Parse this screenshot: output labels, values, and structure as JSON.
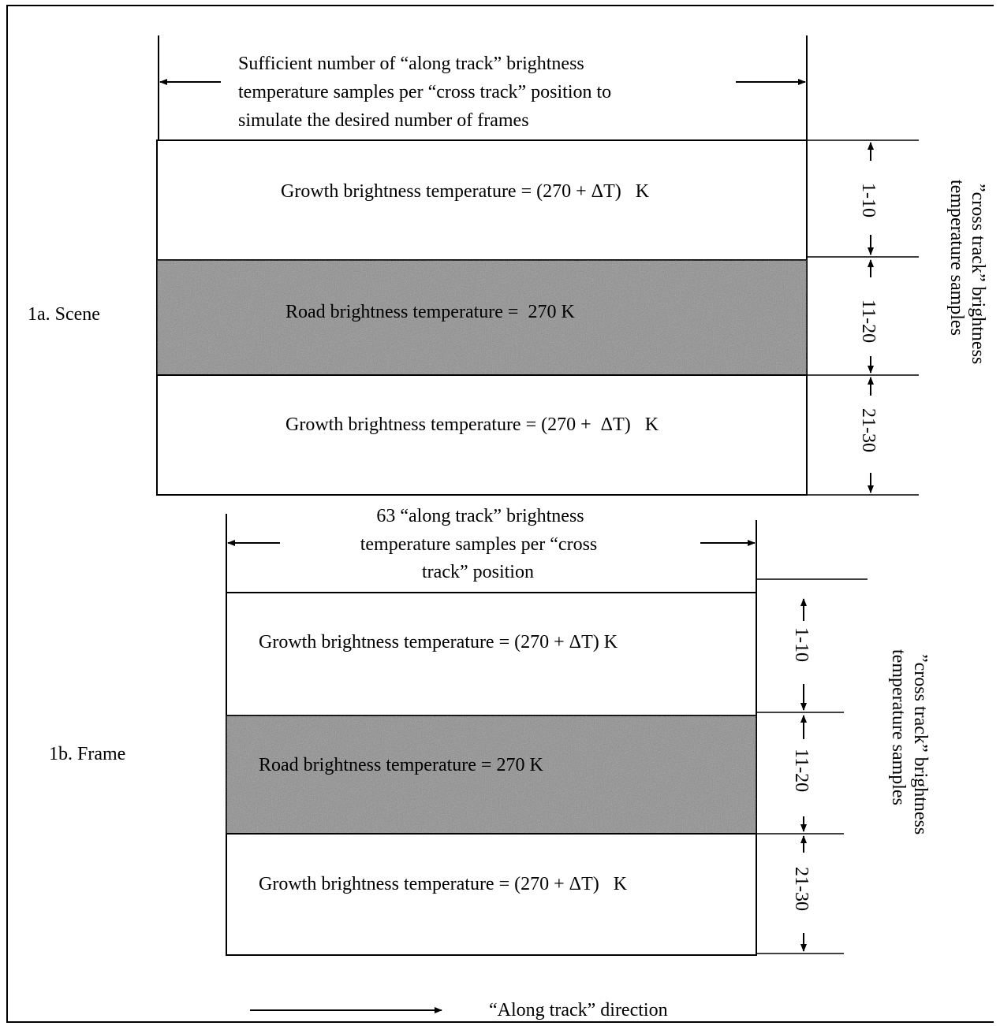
{
  "scene": {
    "label": "1a. Scene",
    "header_lines": [
      "Sufficient number of “along track” brightness",
      "temperature samples per “cross track” position to",
      "simulate the desired number of frames"
    ],
    "band_top": "Growth brightness temperature = (270 + ΔT)   K",
    "band_road": "Road brightness temperature =  270 K",
    "band_bottom": "Growth brightness temperature = (270 +  ΔT)   K",
    "range_1": "1-10",
    "range_2": "11-20",
    "range_3": "21-30",
    "side_label_line1": "”cross track” brightness",
    "side_label_line2": "temperature samples"
  },
  "frame": {
    "label": "1b. Frame",
    "header_lines": [
      "63 “along track” brightness",
      "temperature samples per “cross",
      "track” position"
    ],
    "band_top": "Growth brightness temperature = (270 + ΔT) K",
    "band_road": "Road brightness temperature = 270 K",
    "band_bottom": "Growth brightness temperature = (270 + ΔT)   K",
    "range_1": "1-10",
    "range_2": "11-20",
    "range_3": "21-30",
    "side_label_line1": "”cross track” brightness",
    "side_label_line2": "temperature samples"
  },
  "legend": {
    "label": "“Along track” direction"
  },
  "colors": {
    "road_fill": "#8c8c8c",
    "line": "#000000",
    "background": "#ffffff"
  }
}
